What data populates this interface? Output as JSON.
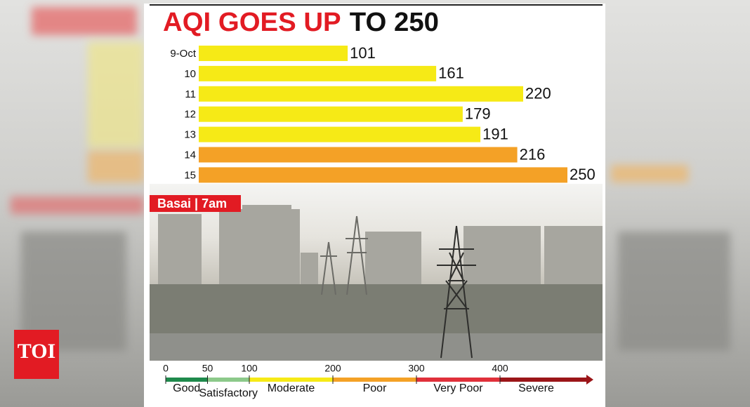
{
  "chart_data": {
    "type": "bar",
    "title": {
      "highlight": "AQI GOES UP",
      "rest": "TO 250"
    },
    "categories": [
      "9-Oct",
      "10",
      "11",
      "12",
      "13",
      "14",
      "15"
    ],
    "values": [
      101,
      161,
      220,
      179,
      191,
      216,
      250
    ],
    "colors": [
      "#f6ea16",
      "#f6ea16",
      "#f6ea16",
      "#f6ea16",
      "#f6ea16",
      "#f4a126",
      "#f4a126"
    ],
    "caption": "Basai | 7am"
  },
  "aqi_scale": {
    "ticks": [
      0,
      50,
      100,
      200,
      300,
      400
    ],
    "bands": [
      {
        "label": "Good",
        "color": "#1f8a4c"
      },
      {
        "label": "Satisfactory",
        "color": "#8cc98a"
      },
      {
        "label": "Moderate",
        "color": "#f6ea16"
      },
      {
        "label": "Poor",
        "color": "#f4a126"
      },
      {
        "label": "Very Poor",
        "color": "#e0303a"
      },
      {
        "label": "Severe",
        "color": "#9b1518"
      }
    ]
  },
  "logo": "TOI"
}
